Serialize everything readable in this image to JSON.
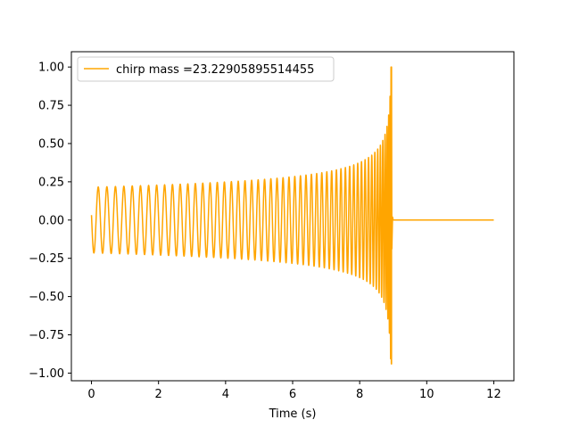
{
  "chart_data": {
    "type": "line",
    "title": "",
    "xlabel": "Time (s)",
    "ylabel": "",
    "xlim": [
      -0.6,
      12.6
    ],
    "ylim": [
      -1.05,
      1.1
    ],
    "x_ticks": [
      0,
      2,
      4,
      6,
      8,
      10,
      12
    ],
    "x_tick_labels": [
      "0",
      "2",
      "4",
      "6",
      "8",
      "10",
      "12"
    ],
    "y_ticks": [
      -1.0,
      -0.75,
      -0.5,
      -0.25,
      0.0,
      0.25,
      0.5,
      0.75,
      1.0
    ],
    "y_tick_labels": [
      "−1.00",
      "−0.75",
      "−0.50",
      "−0.25",
      "0.00",
      "0.25",
      "0.50",
      "0.75",
      "1.00"
    ],
    "grid": false,
    "legend_position": "top-left",
    "series": [
      {
        "name": "chirp mass =23.22905895514455",
        "color": "#ffa500",
        "t_start": 0.0,
        "t_merger": 8.95,
        "t_end": 12.0,
        "amplitude_start": 0.215,
        "amplitude_peak_positive": 1.0,
        "amplitude_peak_negative": -0.94
      }
    ]
  }
}
